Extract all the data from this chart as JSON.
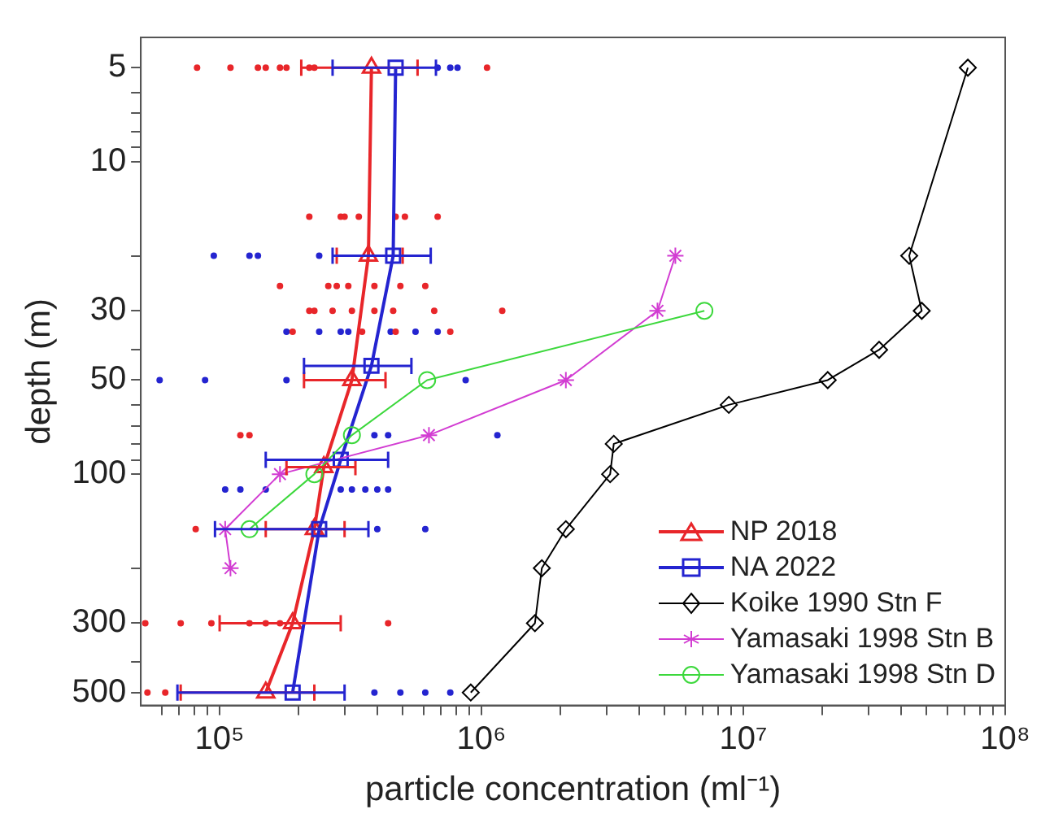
{
  "chart_data": {
    "type": "line",
    "xlabel": "particle concentration (ml⁻¹)",
    "ylabel": "depth (m)",
    "log": "xy",
    "xlim": [
      50000,
      100000000
    ],
    "ylim": [
      550,
      4
    ],
    "xticks": [
      {
        "value": 60000,
        "label": null
      },
      {
        "value": 70000,
        "label": null
      },
      {
        "value": 80000,
        "label": null
      },
      {
        "value": 90000,
        "label": null
      },
      {
        "value": 100000,
        "label": "10⁵"
      },
      {
        "value": 200000,
        "label": null
      },
      {
        "value": 300000,
        "label": null
      },
      {
        "value": 400000,
        "label": null
      },
      {
        "value": 500000,
        "label": null
      },
      {
        "value": 600000,
        "label": null
      },
      {
        "value": 700000,
        "label": null
      },
      {
        "value": 800000,
        "label": null
      },
      {
        "value": 900000,
        "label": null
      },
      {
        "value": 1000000,
        "label": "10⁶"
      },
      {
        "value": 2000000,
        "label": null
      },
      {
        "value": 3000000,
        "label": null
      },
      {
        "value": 4000000,
        "label": null
      },
      {
        "value": 5000000,
        "label": null
      },
      {
        "value": 6000000,
        "label": null
      },
      {
        "value": 7000000,
        "label": null
      },
      {
        "value": 8000000,
        "label": null
      },
      {
        "value": 9000000,
        "label": null
      },
      {
        "value": 10000000,
        "label": "10⁷"
      },
      {
        "value": 20000000,
        "label": null
      },
      {
        "value": 30000000,
        "label": null
      },
      {
        "value": 40000000,
        "label": null
      },
      {
        "value": 50000000,
        "label": null
      },
      {
        "value": 60000000,
        "label": null
      },
      {
        "value": 70000000,
        "label": null
      },
      {
        "value": 80000000,
        "label": null
      },
      {
        "value": 90000000,
        "label": null
      },
      {
        "value": 100000000,
        "label": "10⁸"
      }
    ],
    "yticks": [
      5,
      {
        "value": 6,
        "label": null
      },
      {
        "value": 7,
        "label": null
      },
      {
        "value": 8,
        "label": null
      },
      {
        "value": 9,
        "label": null
      },
      10,
      {
        "value": 20,
        "label": null
      },
      30,
      {
        "value": 40,
        "label": null
      },
      50,
      {
        "value": 60,
        "label": null
      },
      {
        "value": 70,
        "label": null
      },
      {
        "value": 80,
        "label": null
      },
      {
        "value": 90,
        "label": null
      },
      100,
      {
        "value": 200,
        "label": null
      },
      300,
      {
        "value": 400,
        "label": null
      },
      500
    ],
    "grid": false,
    "legend": "bottom right",
    "line_style": "solid",
    "series": [
      {
        "type": "scatter",
        "color": "#e8262a",
        "marker": "circle",
        "x": [
          82000,
          110000,
          140000,
          150000,
          170000,
          180000,
          220000,
          230000,
          1050000,
          220000,
          290000,
          300000,
          340000,
          470000,
          510000,
          680000,
          170000,
          260000,
          280000,
          310000,
          360000,
          390000,
          490000,
          610000,
          220000,
          230000,
          270000,
          320000,
          390000,
          460000,
          660000,
          1200000,
          190000,
          350000,
          470000,
          760000,
          120000,
          130000,
          81000,
          52000,
          71000,
          93000,
          130000,
          150000,
          170000,
          440000,
          53000,
          62000
        ],
        "values": [
          5,
          5,
          5,
          5,
          5,
          5,
          5,
          5,
          5,
          15,
          15,
          15,
          15,
          15,
          15,
          15,
          25,
          25,
          25,
          25,
          null,
          25,
          25,
          25,
          30,
          30,
          30,
          30,
          30,
          30,
          30,
          30,
          35,
          35,
          35,
          35,
          75,
          75,
          150,
          300,
          300,
          300,
          300,
          300,
          300,
          300,
          500,
          500
        ]
      },
      {
        "type": "scatter",
        "color": "#2424d0",
        "marker": "circle",
        "x": [
          680000,
          760000,
          810000,
          95000,
          130000,
          140000,
          240000,
          180000,
          240000,
          290000,
          310000,
          450000,
          560000,
          680000,
          59000,
          88000,
          180000,
          870000,
          390000,
          440000,
          1150000,
          105000,
          120000,
          150000,
          290000,
          320000,
          360000,
          400000,
          440000,
          610000,
          400000,
          390000,
          490000,
          610000,
          760000
        ],
        "values": [
          5,
          5,
          5,
          20,
          20,
          20,
          20,
          35,
          35,
          35,
          35,
          35,
          35,
          35,
          50,
          50,
          50,
          50,
          75,
          75,
          75,
          112,
          112,
          112,
          112,
          112,
          112,
          112,
          112,
          150,
          150,
          500,
          500,
          500,
          500
        ]
      },
      {
        "name": "NP 2018",
        "color": "#e8262a",
        "marker": "triangle",
        "x": [
          380000,
          370000,
          320000,
          250000,
          230000,
          190000,
          150000
        ],
        "values": [
          5,
          20,
          50,
          95,
          150,
          300,
          500
        ],
        "xerrors": [
          [
            205000,
            570000
          ],
          [
            280000,
            500000
          ],
          [
            210000,
            430000
          ],
          [
            180000,
            330000
          ],
          [
            150000,
            300000
          ],
          [
            100000,
            290000
          ],
          [
            71000,
            230000
          ]
        ]
      },
      {
        "name": "NA 2022",
        "color": "#2424d0",
        "marker": "square",
        "x": [
          470000,
          460000,
          380000,
          290000,
          240000,
          190000
        ],
        "values": [
          5,
          20,
          45,
          90,
          150,
          500
        ],
        "xerrors": [
          [
            270000,
            670000
          ],
          [
            270000,
            640000
          ],
          [
            210000,
            540000
          ],
          [
            150000,
            440000
          ],
          [
            96000,
            370000
          ],
          [
            69000,
            300000
          ]
        ]
      },
      {
        "name": "Koike 1990 Stn F",
        "color": "#000000",
        "marker": "diamond",
        "x": [
          72000000,
          43000000,
          48000000,
          33000000,
          21000000,
          8800000,
          3200000,
          3100000,
          2100000,
          1700000,
          1600000,
          910000
        ],
        "values": [
          5,
          20,
          30,
          40,
          50,
          60,
          80,
          100,
          150,
          200,
          300,
          500
        ]
      },
      {
        "name": "Yamasaki 1998 Stn B",
        "color": "#d23cd2",
        "marker": "cross",
        "x": [
          5500000,
          4700000,
          2100000,
          630000,
          170000,
          105000,
          110000
        ],
        "values": [
          20,
          30,
          50,
          75,
          100,
          150,
          200
        ]
      },
      {
        "name": "Yamasaki 1998 Stn D",
        "color": "#3cd83c",
        "marker": "circle",
        "x": [
          7100000,
          620000,
          320000,
          230000,
          130000
        ],
        "values": [
          30,
          50,
          75,
          100,
          150
        ]
      }
    ]
  }
}
